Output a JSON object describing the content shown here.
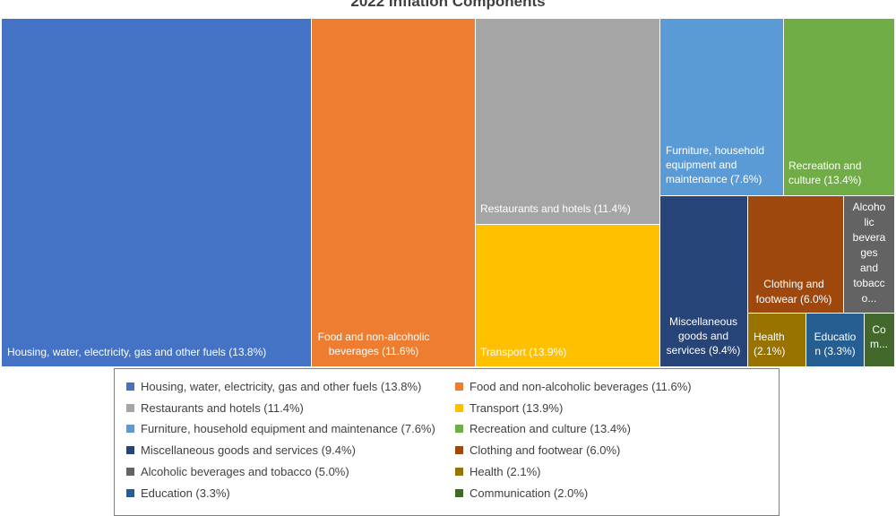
{
  "chart_data": {
    "type": "treemap",
    "title": "2022 Inflation Components",
    "legend_position": "bottom",
    "items": [
      {
        "name": "Housing, water, electricity, gas and other fuels",
        "value": 13.8,
        "color": "#4472C4",
        "label_lines": [
          "Housing, water, electricity, gas and other fuels (13.8%)"
        ]
      },
      {
        "name": "Food and non-alcoholic beverages",
        "value": 11.6,
        "color": "#ED7D31",
        "label_lines": [
          "Food and non-alcoholic",
          "beverages (11.6%)"
        ]
      },
      {
        "name": "Restaurants and hotels",
        "value": 11.4,
        "color": "#A5A5A5",
        "label_lines": [
          "Restaurants and hotels (11.4%)"
        ]
      },
      {
        "name": "Transport",
        "value": 13.9,
        "color": "#FFC000",
        "label_lines": [
          "Transport (13.9%)"
        ]
      },
      {
        "name": "Furniture, household equipment and maintenance",
        "value": 7.6,
        "color": "#5B9BD5",
        "label_lines": [
          "Furniture, household",
          "equipment and",
          "maintenance (7.6%)"
        ]
      },
      {
        "name": "Recreation and culture",
        "value": 13.4,
        "color": "#70AD47",
        "label_lines": [
          "Recreation and",
          "culture (13.4%)"
        ]
      },
      {
        "name": "Miscellaneous goods and services",
        "value": 9.4,
        "color": "#264478",
        "label_lines": [
          "Miscellaneous",
          "goods and",
          "services (9.4%)"
        ]
      },
      {
        "name": "Clothing and footwear",
        "value": 6.0,
        "color": "#9E480E",
        "label_lines": [
          "Clothing and",
          "footwear (6.0%)"
        ]
      },
      {
        "name": "Alcoholic beverages and tobacco",
        "value": 5.0,
        "color": "#636363",
        "label_lines": [
          "Alcoho",
          "lic",
          "bevera",
          "ges",
          "and",
          "tobacc",
          "o..."
        ]
      },
      {
        "name": "Health",
        "value": 2.1,
        "color": "#997300",
        "label_lines": [
          "Health",
          "(2.1%)"
        ]
      },
      {
        "name": "Education",
        "value": 3.3,
        "color": "#255E91",
        "label_lines": [
          "Educatio",
          "n (3.3%)"
        ]
      },
      {
        "name": "Communication",
        "value": 2.0,
        "color": "#43682B",
        "label_lines": [
          "Co",
          "m..."
        ]
      }
    ],
    "legend": [
      "Housing, water, electricity, gas and other fuels (13.8%)",
      "Food and non-alcoholic beverages (11.6%)",
      "Restaurants and hotels (11.4%)",
      "Transport (13.9%)",
      "Furniture, household equipment and maintenance (7.6%)",
      "Recreation and culture (13.4%)",
      "Miscellaneous goods and services (9.4%)",
      "Clothing and footwear (6.0%)",
      "Alcoholic beverages and tobacco (5.0%)",
      "Health (2.1%)",
      "Education (3.3%)",
      "Communication (2.0%)"
    ]
  }
}
